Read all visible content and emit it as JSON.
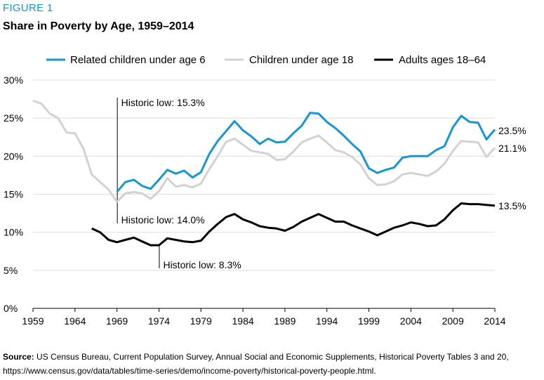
{
  "figure_label": "FIGURE 1",
  "source": {
    "label": "Source:",
    "line1": "US Census Bureau, Current Population Survey, Annual Social and Economic Supplements, Historical Poverty Tables 3 and 20,",
    "line2": "https://www.census.gov/data/tables/time-series/demo/income-poverty/historical-poverty-people.html."
  },
  "colors": {
    "blue": "#1696d2",
    "gray": "#d2d2d2",
    "black": "#000000",
    "accent": "#1696d2"
  },
  "chart_data": {
    "type": "line",
    "title": "Share in Poverty by Age, 1959–2014",
    "xlabel": "",
    "ylabel": "",
    "xlim": [
      1959,
      2014
    ],
    "ylim": [
      0,
      30
    ],
    "grid": true,
    "legend_position": "top",
    "x_ticks": [
      "1959",
      "1964",
      "1969",
      "1974",
      "1979",
      "1984",
      "1989",
      "1994",
      "1999",
      "2004",
      "2009",
      "2014"
    ],
    "y_ticks": [
      "0%",
      "5%",
      "10%",
      "15%",
      "20%",
      "25%",
      "30%"
    ],
    "series": [
      {
        "name": "Related children under age 6",
        "color": "#1696d2",
        "x": [
          1969,
          1970,
          1971,
          1972,
          1973,
          1974,
          1975,
          1976,
          1977,
          1978,
          1979,
          1980,
          1981,
          1982,
          1983,
          1984,
          1985,
          1986,
          1987,
          1988,
          1989,
          1990,
          1991,
          1992,
          1993,
          1994,
          1995,
          1996,
          1997,
          1998,
          1999,
          2000,
          2001,
          2002,
          2003,
          2004,
          2005,
          2006,
          2007,
          2008,
          2009,
          2010,
          2011,
          2012,
          2013,
          2014
        ],
        "values": [
          15.3,
          16.6,
          16.9,
          16.1,
          15.7,
          16.9,
          18.2,
          17.7,
          18.1,
          17.2,
          17.9,
          20.3,
          22.0,
          23.3,
          24.6,
          23.4,
          22.6,
          21.6,
          22.3,
          21.8,
          21.9,
          23.0,
          24.0,
          25.7,
          25.6,
          24.5,
          23.7,
          22.7,
          21.6,
          20.6,
          18.4,
          17.8,
          18.2,
          18.5,
          19.8,
          20.0,
          20.0,
          20.0,
          20.8,
          21.3,
          23.8,
          25.3,
          24.5,
          24.4,
          22.2,
          23.5
        ],
        "end_label": "23.5%"
      },
      {
        "name": "Children under age 18",
        "color": "#d2d2d2",
        "x": [
          1959,
          1960,
          1961,
          1962,
          1963,
          1964,
          1965,
          1966,
          1967,
          1968,
          1969,
          1970,
          1971,
          1972,
          1973,
          1974,
          1975,
          1976,
          1977,
          1978,
          1979,
          1980,
          1981,
          1982,
          1983,
          1984,
          1985,
          1986,
          1987,
          1988,
          1989,
          1990,
          1991,
          1992,
          1993,
          1994,
          1995,
          1996,
          1997,
          1998,
          1999,
          2000,
          2001,
          2002,
          2003,
          2004,
          2005,
          2006,
          2007,
          2008,
          2009,
          2010,
          2011,
          2012,
          2013,
          2014
        ],
        "values": [
          27.3,
          26.9,
          25.6,
          25.0,
          23.1,
          23.0,
          21.0,
          17.6,
          16.6,
          15.6,
          14.0,
          15.1,
          15.3,
          15.1,
          14.4,
          15.4,
          17.1,
          16.0,
          16.2,
          15.9,
          16.4,
          18.3,
          20.0,
          21.9,
          22.3,
          21.5,
          20.7,
          20.5,
          20.3,
          19.5,
          19.6,
          20.6,
          21.8,
          22.3,
          22.7,
          21.8,
          20.8,
          20.5,
          19.9,
          18.9,
          17.1,
          16.2,
          16.3,
          16.7,
          17.6,
          17.8,
          17.6,
          17.4,
          18.0,
          19.0,
          20.7,
          22.0,
          21.9,
          21.8,
          19.9,
          21.1
        ],
        "end_label": "21.1%"
      },
      {
        "name": "Adults ages 18–64",
        "color": "#000000",
        "x": [
          1966,
          1967,
          1968,
          1969,
          1970,
          1971,
          1972,
          1973,
          1974,
          1975,
          1976,
          1977,
          1978,
          1979,
          1980,
          1981,
          1982,
          1983,
          1984,
          1985,
          1986,
          1987,
          1988,
          1989,
          1990,
          1991,
          1992,
          1993,
          1994,
          1995,
          1996,
          1997,
          1998,
          1999,
          2000,
          2001,
          2002,
          2003,
          2004,
          2005,
          2006,
          2007,
          2008,
          2009,
          2010,
          2011,
          2012,
          2013,
          2014
        ],
        "values": [
          10.5,
          10.0,
          9.0,
          8.7,
          9.0,
          9.3,
          8.8,
          8.3,
          8.3,
          9.2,
          9.0,
          8.8,
          8.7,
          8.9,
          10.1,
          11.1,
          12.0,
          12.4,
          11.7,
          11.3,
          10.8,
          10.6,
          10.5,
          10.2,
          10.7,
          11.4,
          11.9,
          12.4,
          11.9,
          11.4,
          11.4,
          10.9,
          10.5,
          10.1,
          9.6,
          10.1,
          10.6,
          10.9,
          11.3,
          11.1,
          10.8,
          10.9,
          11.7,
          12.9,
          13.8,
          13.7,
          13.7,
          13.6,
          13.5
        ],
        "end_label": "13.5%"
      }
    ],
    "annotations": [
      {
        "text": "Historic low: 15.3%",
        "x": 1969,
        "y": 15.3
      },
      {
        "text": "Historic low: 14.0%",
        "x": 1969,
        "y": 14.0
      },
      {
        "text": "Historic low: 8.3%",
        "x": 1974,
        "y": 8.3
      }
    ]
  }
}
